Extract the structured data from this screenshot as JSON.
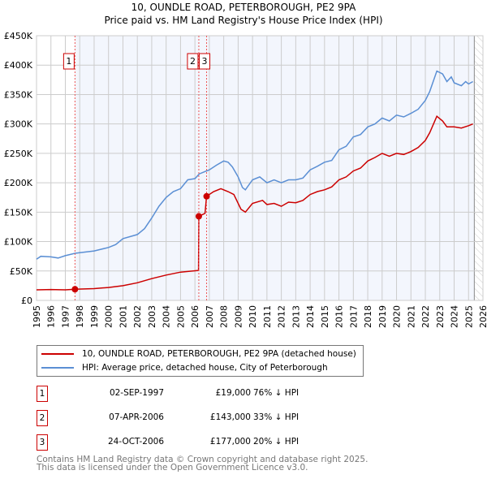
{
  "chart_data": {
    "type": "line",
    "title": "10, OUNDLE ROAD, PETERBOROUGH, PE2 9PA",
    "subtitle": "Price paid vs. HM Land Registry's House Price Index (HPI)",
    "xlim": [
      1995,
      2026
    ],
    "ylim": [
      0,
      450000
    ],
    "x_ticks": [
      "1995",
      "1996",
      "1997",
      "1998",
      "1999",
      "2000",
      "2001",
      "2002",
      "2003",
      "2004",
      "2005",
      "2006",
      "2007",
      "2008",
      "2009",
      "2010",
      "2011",
      "2012",
      "2013",
      "2014",
      "2015",
      "2016",
      "2017",
      "2018",
      "2019",
      "2020",
      "2021",
      "2022",
      "2023",
      "2024",
      "2025",
      "2026"
    ],
    "y_ticks": [
      {
        "v": 0,
        "label": "£0"
      },
      {
        "v": 50000,
        "label": "£50K"
      },
      {
        "v": 100000,
        "label": "£100K"
      },
      {
        "v": 150000,
        "label": "£150K"
      },
      {
        "v": 200000,
        "label": "£200K"
      },
      {
        "v": 250000,
        "label": "£250K"
      },
      {
        "v": 300000,
        "label": "£300K"
      },
      {
        "v": 350000,
        "label": "£350K"
      },
      {
        "v": 400000,
        "label": "£400K"
      },
      {
        "v": 450000,
        "label": "£450K"
      }
    ],
    "grid": true,
    "shaded_range": [
      1997.67,
      2025.4
    ],
    "hatched_from": 2025.4,
    "series": [
      {
        "name": "10, OUNDLE ROAD, PETERBOROUGH, PE2 9PA (detached house)",
        "color": "#cc0000",
        "x": [
          1995,
          1996,
          1997,
          1997.67,
          1999,
          2000,
          2001,
          2002,
          2003,
          2004,
          2005,
          2006.25,
          2006.27,
          2006.7,
          2006.81,
          2007.3,
          2007.8,
          2008.3,
          2008.7,
          2009.2,
          2009.5,
          2010,
          2010.7,
          2011,
          2011.5,
          2012,
          2012.5,
          2013,
          2013.5,
          2014,
          2014.5,
          2015,
          2015.5,
          2016,
          2016.5,
          2017,
          2017.5,
          2018,
          2018.5,
          2019,
          2019.5,
          2020,
          2020.5,
          2021,
          2021.5,
          2022,
          2022.3,
          2022.8,
          2023.2,
          2023.5,
          2024,
          2024.5,
          2025,
          2025.3
        ],
        "y": [
          18000,
          18500,
          18000,
          19000,
          20000,
          22000,
          25000,
          30000,
          37000,
          43000,
          48000,
          51000,
          143000,
          148000,
          177000,
          185000,
          190000,
          185000,
          180000,
          155000,
          150000,
          165000,
          170000,
          163000,
          165000,
          160000,
          167000,
          166000,
          170000,
          180000,
          185000,
          188000,
          193000,
          205000,
          210000,
          220000,
          225000,
          237000,
          243000,
          250000,
          245000,
          250000,
          248000,
          253000,
          260000,
          272000,
          285000,
          313000,
          305000,
          295000,
          295000,
          293000,
          297000,
          300000
        ]
      },
      {
        "name": "HPI: Average price, detached house, City of Peterborough",
        "color": "#5b8fd4",
        "x": [
          1995,
          1995.3,
          1996,
          1996.5,
          1997,
          1997.67,
          1998,
          1999,
          2000,
          2000.5,
          2001,
          2002,
          2002.5,
          2003,
          2003.5,
          2004,
          2004.5,
          2005,
          2005.5,
          2006,
          2006.3,
          2007,
          2007.5,
          2008,
          2008.3,
          2008.6,
          2009,
          2009.3,
          2009.5,
          2010,
          2010.5,
          2011,
          2011.5,
          2012,
          2012.5,
          2013,
          2013.5,
          2014,
          2014.5,
          2015,
          2015.5,
          2016,
          2016.5,
          2017,
          2017.5,
          2018,
          2018.5,
          2019,
          2019.5,
          2020,
          2020.5,
          2021,
          2021.5,
          2022,
          2022.3,
          2022.8,
          2023.2,
          2023.5,
          2023.8,
          2024,
          2024.5,
          2024.8,
          2025,
          2025.3
        ],
        "y": [
          70000,
          75000,
          74000,
          72000,
          76000,
          80000,
          81000,
          84000,
          90000,
          95000,
          105000,
          112000,
          122000,
          140000,
          160000,
          175000,
          185000,
          190000,
          205000,
          207000,
          215000,
          222000,
          230000,
          237000,
          235000,
          227000,
          210000,
          192000,
          188000,
          205000,
          210000,
          200000,
          205000,
          200000,
          205000,
          205000,
          208000,
          222000,
          228000,
          235000,
          238000,
          256000,
          262000,
          278000,
          282000,
          295000,
          300000,
          310000,
          305000,
          315000,
          312000,
          318000,
          325000,
          340000,
          355000,
          390000,
          385000,
          372000,
          380000,
          370000,
          365000,
          372000,
          368000,
          372000
        ]
      }
    ],
    "annotations": [
      {
        "label": "1",
        "x": 1997.67,
        "y": 19000
      },
      {
        "label": "2",
        "x": 2006.27,
        "y": 143000
      },
      {
        "label": "3",
        "x": 2006.81,
        "y": 177000
      }
    ]
  },
  "transactions": [
    {
      "num": "1",
      "date": "02-SEP-1997",
      "price": "£19,000",
      "hpi": "76% ↓ HPI"
    },
    {
      "num": "2",
      "date": "07-APR-2006",
      "price": "£143,000",
      "hpi": "33% ↓ HPI"
    },
    {
      "num": "3",
      "date": "24-OCT-2006",
      "price": "£177,000",
      "hpi": "20% ↓ HPI"
    }
  ],
  "footer": {
    "line1": "Contains HM Land Registry data © Crown copyright and database right 2025.",
    "line2": "This data is licensed under the Open Government Licence v3.0."
  }
}
